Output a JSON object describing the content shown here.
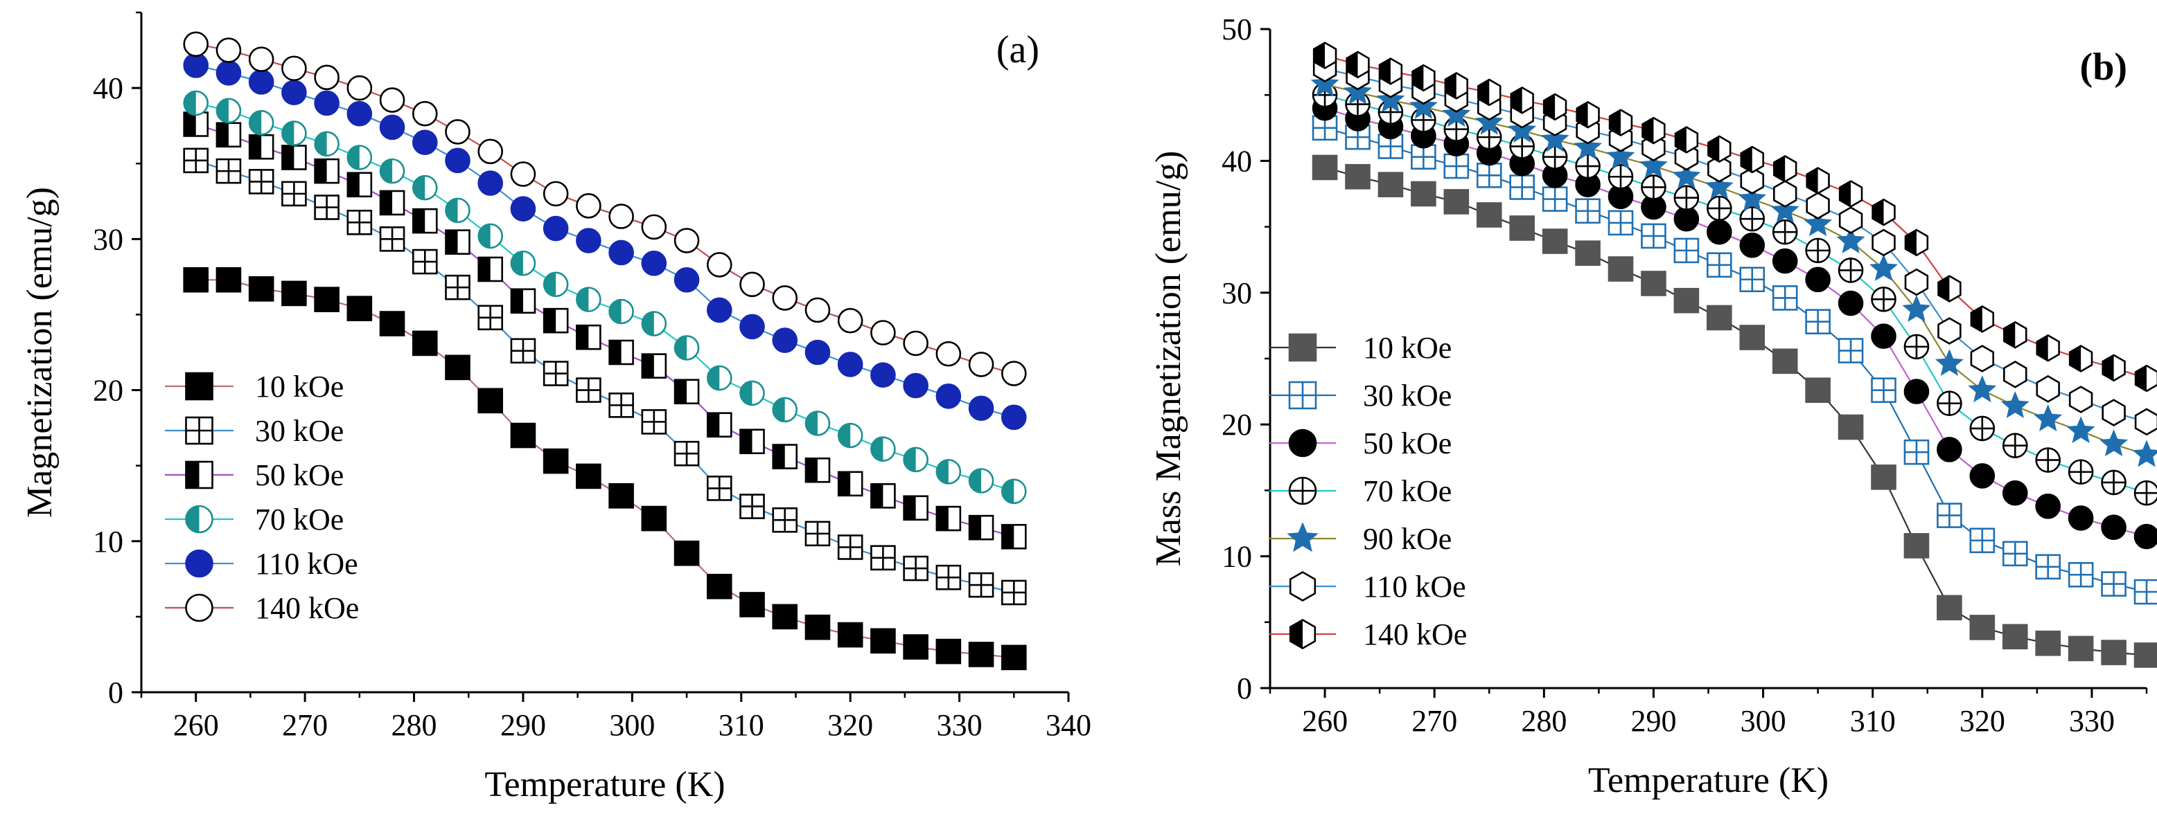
{
  "figure": {
    "panels": 2
  },
  "chart_data": [
    {
      "id": "a",
      "type": "line",
      "panel_label": "(a)",
      "panel_label_bold": false,
      "xlabel": "Temperature (K)",
      "ylabel": "Magnetization (emu/g)",
      "xlim": [
        255,
        340
      ],
      "ylim": [
        0,
        45
      ],
      "xticks": [
        260,
        270,
        280,
        290,
        300,
        310,
        320,
        330,
        340
      ],
      "yticks": [
        0,
        10,
        20,
        30,
        40
      ],
      "grid": false,
      "legend_position": "lower-left",
      "x": [
        260,
        263,
        266,
        269,
        272,
        275,
        278,
        281,
        284,
        287,
        290,
        293,
        296,
        299,
        302,
        305,
        308,
        311,
        314,
        317,
        320,
        323,
        326,
        329,
        332,
        335
      ],
      "series": [
        {
          "name": "10 kOe",
          "marker": "square",
          "fill": "#000000",
          "stroke": "#000000",
          "line": "#b07070",
          "values": [
            27.3,
            27.3,
            26.7,
            26.4,
            26.0,
            25.4,
            24.4,
            23.1,
            21.5,
            19.3,
            17.0,
            15.3,
            14.3,
            13.0,
            11.5,
            9.2,
            7.0,
            5.8,
            5.0,
            4.3,
            3.8,
            3.4,
            3.0,
            2.7,
            2.5,
            2.3
          ]
        },
        {
          "name": "30 kOe",
          "marker": "square-grid",
          "fill": "#ffffff",
          "stroke": "#000000",
          "line": "#3a8fd0",
          "values": [
            35.2,
            34.5,
            33.8,
            33.0,
            32.1,
            31.1,
            30.0,
            28.5,
            26.8,
            24.8,
            22.6,
            21.1,
            20.0,
            19.0,
            17.9,
            15.8,
            13.5,
            12.3,
            11.4,
            10.5,
            9.6,
            8.9,
            8.2,
            7.6,
            7.1,
            6.6
          ]
        },
        {
          "name": "50 kOe",
          "marker": "square-half",
          "fill": "#000000",
          "stroke": "#000000",
          "line": "#a050c8",
          "values": [
            37.6,
            36.9,
            36.1,
            35.4,
            34.5,
            33.6,
            32.4,
            31.2,
            29.8,
            28.0,
            25.9,
            24.6,
            23.5,
            22.5,
            21.6,
            19.9,
            17.7,
            16.6,
            15.6,
            14.7,
            13.8,
            13.0,
            12.2,
            11.5,
            10.9,
            10.3
          ]
        },
        {
          "name": "70 kOe",
          "marker": "circle-half",
          "fill": "#1a9090",
          "stroke": "#1a9090",
          "line": "#20c8c8",
          "values": [
            39.0,
            38.5,
            37.7,
            37.0,
            36.3,
            35.4,
            34.5,
            33.4,
            31.9,
            30.2,
            28.4,
            27.0,
            26.0,
            25.2,
            24.4,
            22.8,
            20.8,
            19.8,
            18.7,
            17.8,
            17.0,
            16.1,
            15.4,
            14.6,
            14.0,
            13.3
          ]
        },
        {
          "name": "110 kOe",
          "marker": "circle",
          "fill": "#1428b4",
          "stroke": "#1428b4",
          "line": "#3a8fd0",
          "values": [
            41.5,
            41.0,
            40.4,
            39.7,
            39.0,
            38.3,
            37.4,
            36.4,
            35.2,
            33.7,
            32.0,
            30.7,
            29.9,
            29.1,
            28.4,
            27.3,
            25.3,
            24.2,
            23.3,
            22.5,
            21.7,
            21.0,
            20.3,
            19.6,
            18.8,
            18.2
          ]
        },
        {
          "name": "140 kOe",
          "marker": "circle-open",
          "fill": "#ffffff",
          "stroke": "#000000",
          "line": "#c05050",
          "values": [
            42.9,
            42.5,
            41.9,
            41.3,
            40.7,
            40.0,
            39.2,
            38.3,
            37.1,
            35.8,
            34.3,
            33.0,
            32.2,
            31.5,
            30.8,
            29.9,
            28.3,
            27.0,
            26.1,
            25.3,
            24.6,
            23.8,
            23.1,
            22.4,
            21.7,
            21.1
          ]
        }
      ]
    },
    {
      "id": "b",
      "type": "line",
      "panel_label": "(b)",
      "panel_label_bold": true,
      "xlabel": "Temperature (K)",
      "ylabel": "Mass Magnetization (emu/g)",
      "xlim": [
        255,
        335
      ],
      "ylim": [
        0,
        50
      ],
      "xticks": [
        260,
        270,
        280,
        290,
        300,
        310,
        320,
        330
      ],
      "yticks": [
        0,
        10,
        20,
        30,
        40,
        50
      ],
      "grid": false,
      "legend_position": "lower-left",
      "x": [
        260,
        263,
        266,
        269,
        272,
        275,
        278,
        281,
        284,
        287,
        290,
        293,
        296,
        299,
        302,
        305,
        308,
        311,
        314,
        317,
        320,
        323,
        326,
        329,
        332,
        335
      ],
      "series": [
        {
          "name": "10 kOe",
          "marker": "square",
          "fill": "#555555",
          "stroke": "#555555",
          "line": "#333333",
          "values": [
            39.5,
            38.8,
            38.2,
            37.5,
            36.9,
            35.9,
            34.9,
            33.9,
            33.0,
            31.8,
            30.7,
            29.4,
            28.1,
            26.6,
            24.8,
            22.6,
            19.8,
            16.0,
            10.8,
            6.1,
            4.6,
            3.9,
            3.4,
            3.0,
            2.7,
            2.5
          ]
        },
        {
          "name": "30 kOe",
          "marker": "square-grid",
          "fill": "#ffffff",
          "stroke": "#1f6fb0",
          "line": "#1f6fb0",
          "values": [
            42.5,
            41.8,
            41.1,
            40.3,
            39.6,
            38.9,
            38.0,
            37.1,
            36.2,
            35.3,
            34.3,
            33.2,
            32.1,
            31.0,
            29.6,
            27.8,
            25.6,
            22.6,
            17.9,
            13.1,
            11.2,
            10.2,
            9.2,
            8.6,
            7.9,
            7.3
          ]
        },
        {
          "name": "50 kOe",
          "marker": "circle",
          "fill": "#000000",
          "stroke": "#000000",
          "line": "#c060d0",
          "values": [
            44.0,
            43.2,
            42.6,
            41.9,
            41.3,
            40.6,
            39.8,
            38.9,
            38.2,
            37.3,
            36.5,
            35.6,
            34.6,
            33.6,
            32.4,
            31.0,
            29.2,
            26.7,
            22.5,
            18.1,
            16.1,
            14.8,
            13.8,
            12.9,
            12.2,
            11.5
          ]
        },
        {
          "name": "70 kOe",
          "marker": "circle-plus",
          "fill": "#ffffff",
          "stroke": "#000000",
          "line": "#20c8c8",
          "values": [
            45.0,
            44.3,
            43.7,
            43.1,
            42.4,
            41.8,
            41.1,
            40.3,
            39.6,
            38.8,
            38.0,
            37.2,
            36.4,
            35.6,
            34.6,
            33.2,
            31.7,
            29.5,
            25.9,
            21.6,
            19.7,
            18.4,
            17.3,
            16.4,
            15.6,
            14.8
          ]
        },
        {
          "name": "90 kOe",
          "marker": "star",
          "fill": "#1f6fb0",
          "stroke": "#1f6fb0",
          "line": "#8c8430",
          "values": [
            45.8,
            45.2,
            44.6,
            44.1,
            43.5,
            42.9,
            42.3,
            41.6,
            41.0,
            40.3,
            39.6,
            38.8,
            38.0,
            37.1,
            36.2,
            35.2,
            33.9,
            31.8,
            28.7,
            24.6,
            22.6,
            21.4,
            20.4,
            19.5,
            18.5,
            17.7
          ]
        },
        {
          "name": "110 kOe",
          "marker": "hexagon",
          "fill": "#ffffff",
          "stroke": "#000000",
          "line": "#3a8fd0",
          "values": [
            47.0,
            46.4,
            45.8,
            45.3,
            44.7,
            44.1,
            43.5,
            42.9,
            42.3,
            41.7,
            41.0,
            40.3,
            39.4,
            38.5,
            37.5,
            36.6,
            35.5,
            33.8,
            30.8,
            27.1,
            25.0,
            23.8,
            22.7,
            21.9,
            20.9,
            20.2
          ]
        },
        {
          "name": "140 kOe",
          "marker": "hexagon-half",
          "fill": "#000000",
          "stroke": "#000000",
          "line": "#d04040",
          "values": [
            48.0,
            47.3,
            46.8,
            46.3,
            45.7,
            45.2,
            44.6,
            44.1,
            43.5,
            42.9,
            42.3,
            41.6,
            40.9,
            40.1,
            39.4,
            38.5,
            37.5,
            36.1,
            33.8,
            30.3,
            28.0,
            26.8,
            25.8,
            25.0,
            24.3,
            23.5
          ]
        }
      ]
    }
  ]
}
